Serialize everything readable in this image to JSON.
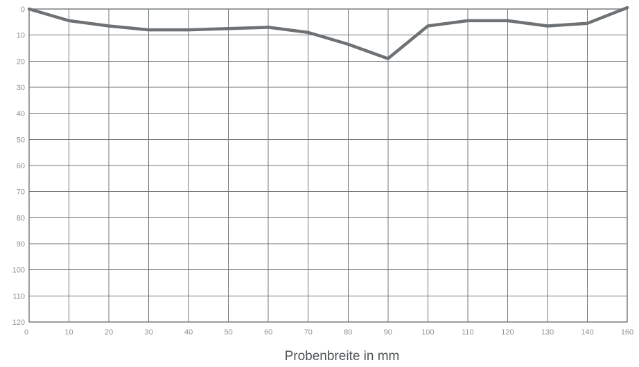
{
  "chart_data": {
    "type": "line",
    "xlabel": "Probenbreite in mm",
    "ylabel": "",
    "x_ticks": [
      0,
      10,
      20,
      30,
      40,
      50,
      60,
      70,
      80,
      90,
      100,
      110,
      120,
      130,
      140,
      160
    ],
    "y_ticks": [
      0,
      10,
      20,
      30,
      40,
      50,
      60,
      70,
      80,
      90,
      100,
      110,
      120
    ],
    "xlim": [
      0,
      150
    ],
    "ylim": [
      0,
      120
    ],
    "y_inverted": true,
    "grid": true,
    "colors": {
      "series": "#6e7275",
      "grid": "#6f7578",
      "tick_text": "#8b9094",
      "axis_title": "#4f5356"
    },
    "series": [
      {
        "x": [
          0,
          10,
          20,
          30,
          40,
          50,
          60,
          70,
          80,
          90,
          100,
          110,
          120,
          130,
          140,
          150
        ],
        "values": [
          0,
          4.5,
          6.5,
          8,
          8,
          7.5,
          7,
          9,
          13.5,
          19,
          6.5,
          4.5,
          4.5,
          6.5,
          5.5,
          -0.5
        ]
      }
    ]
  }
}
